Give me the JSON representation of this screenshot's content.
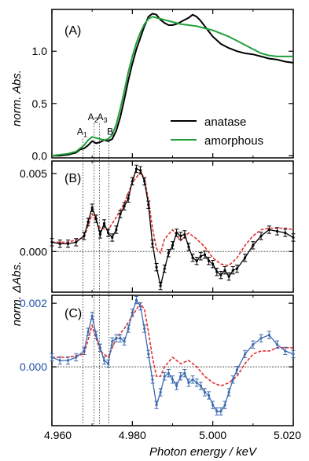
{
  "chart_data": [
    {
      "type": "line",
      "panel_label": "(A)",
      "ylabel": "norm. Abs.",
      "xlim": [
        4.96,
        5.02
      ],
      "ylim": [
        -0.02,
        1.4
      ],
      "yticks": [
        "0.0",
        "0.5",
        "1.0"
      ],
      "legend_position": "bottom-right",
      "annotations": [
        {
          "text": "A",
          "sub": "1",
          "x": 4.9675,
          "y": 0.2
        },
        {
          "text": "A",
          "sub": "2",
          "x": 4.9702,
          "y": 0.34
        },
        {
          "text": "A",
          "sub": "3",
          "x": 4.9725,
          "y": 0.34
        },
        {
          "text": "B",
          "x": 4.9745,
          "y": 0.2
        }
      ],
      "series": [
        {
          "name": "anatase",
          "color": "#000000",
          "x": [
            4.96,
            4.962,
            4.964,
            4.966,
            4.967,
            4.968,
            4.969,
            4.97,
            4.971,
            4.972,
            4.973,
            4.974,
            4.975,
            4.976,
            4.977,
            4.978,
            4.979,
            4.98,
            4.981,
            4.982,
            4.983,
            4.984,
            4.985,
            4.986,
            4.987,
            4.988,
            4.989,
            4.99,
            4.991,
            4.992,
            4.993,
            4.994,
            4.995,
            4.996,
            4.997,
            4.998,
            4.999,
            5.0,
            5.002,
            5.004,
            5.006,
            5.008,
            5.01,
            5.012,
            5.014,
            5.016,
            5.018,
            5.02
          ],
          "y": [
            0.0,
            0.0,
            0.01,
            0.03,
            0.06,
            0.07,
            0.1,
            0.14,
            0.12,
            0.13,
            0.15,
            0.14,
            0.16,
            0.24,
            0.37,
            0.54,
            0.72,
            0.88,
            1.02,
            1.13,
            1.24,
            1.33,
            1.36,
            1.35,
            1.3,
            1.27,
            1.25,
            1.25,
            1.26,
            1.28,
            1.3,
            1.32,
            1.35,
            1.33,
            1.29,
            1.24,
            1.19,
            1.14,
            1.07,
            1.03,
            1.0,
            0.98,
            0.97,
            0.95,
            0.93,
            0.92,
            0.9,
            0.89
          ]
        },
        {
          "name": "amorphous",
          "color": "#21a03a",
          "x": [
            4.96,
            4.962,
            4.964,
            4.966,
            4.967,
            4.968,
            4.969,
            4.97,
            4.971,
            4.972,
            4.973,
            4.974,
            4.975,
            4.976,
            4.977,
            4.978,
            4.979,
            4.98,
            4.981,
            4.982,
            4.983,
            4.984,
            4.985,
            4.986,
            4.987,
            4.988,
            4.99,
            4.992,
            4.994,
            4.996,
            4.998,
            5.0,
            5.002,
            5.004,
            5.006,
            5.008,
            5.01,
            5.012,
            5.014,
            5.016,
            5.018,
            5.02
          ],
          "y": [
            0.0,
            0.01,
            0.02,
            0.04,
            0.07,
            0.1,
            0.15,
            0.18,
            0.17,
            0.16,
            0.15,
            0.16,
            0.2,
            0.3,
            0.45,
            0.62,
            0.8,
            0.95,
            1.08,
            1.18,
            1.26,
            1.31,
            1.33,
            1.32,
            1.31,
            1.3,
            1.28,
            1.26,
            1.25,
            1.24,
            1.22,
            1.2,
            1.17,
            1.14,
            1.1,
            1.06,
            1.02,
            0.98,
            0.96,
            0.95,
            0.95,
            0.95
          ]
        }
      ]
    },
    {
      "type": "line",
      "panel_label": "(B)",
      "ylabel": "norm. ΔAbs.",
      "xlim": [
        4.96,
        5.02
      ],
      "ylim": [
        -0.0026,
        0.0058
      ],
      "yticks": [
        "0.000",
        "0.005"
      ],
      "series": [
        {
          "color": "#000000",
          "style": "markers-with-error-bars",
          "x": [
            4.96,
            4.962,
            4.964,
            4.966,
            4.968,
            4.969,
            4.97,
            4.971,
            4.972,
            4.973,
            4.974,
            4.975,
            4.976,
            4.977,
            4.978,
            4.979,
            4.98,
            4.981,
            4.982,
            4.983,
            4.984,
            4.985,
            4.986,
            4.987,
            4.988,
            4.989,
            4.99,
            4.991,
            4.992,
            4.993,
            4.994,
            4.995,
            4.996,
            4.997,
            4.998,
            4.999,
            5.0,
            5.001,
            5.002,
            5.003,
            5.004,
            5.005,
            5.006,
            5.008,
            5.01,
            5.012,
            5.014,
            5.016,
            5.018,
            5.02
          ],
          "y": [
            0.0006,
            0.0005,
            0.0005,
            0.0006,
            0.001,
            0.0019,
            0.0028,
            0.0021,
            0.0011,
            0.0018,
            0.0012,
            0.0009,
            0.0014,
            0.0024,
            0.0029,
            0.0034,
            0.0045,
            0.0053,
            0.0052,
            0.0045,
            0.003,
            0.0005,
            -0.001,
            -0.0022,
            -0.0011,
            -0.0001,
            0.0004,
            0.0012,
            0.001,
            0.0011,
            0.0003,
            -0.0004,
            -0.0006,
            -0.0003,
            -0.0002,
            -0.0006,
            -0.0008,
            -0.0013,
            -0.0015,
            -0.0012,
            -0.0016,
            -0.0012,
            -0.0011,
            -0.0004,
            0.0004,
            0.001,
            0.0014,
            0.0013,
            0.0012,
            0.0009
          ]
        },
        {
          "color": "#e03030",
          "style": "dashed",
          "x": [
            4.96,
            4.964,
            4.968,
            4.97,
            4.972,
            4.974,
            4.976,
            4.978,
            4.98,
            4.982,
            4.983,
            4.984,
            4.985,
            4.986,
            4.987,
            4.988,
            4.99,
            4.992,
            4.994,
            4.996,
            4.998,
            5.0,
            5.002,
            5.004,
            5.006,
            5.008,
            5.01,
            5.012,
            5.014,
            5.016,
            5.018,
            5.02
          ],
          "y": [
            0.0006,
            0.0006,
            0.0009,
            0.0024,
            0.0015,
            0.0014,
            0.0022,
            0.0031,
            0.0044,
            0.0051,
            0.0047,
            0.0033,
            0.0015,
            0.0002,
            -0.0001,
            0.0008,
            0.0014,
            0.0007,
            0.0012,
            0.0008,
            0.0003,
            -0.0004,
            -0.0008,
            -0.0009,
            -0.0004,
            0.0004,
            0.001,
            0.0014,
            0.0015,
            0.0015,
            0.0015,
            0.0014
          ]
        }
      ]
    },
    {
      "type": "line",
      "panel_label": "(C)",
      "xlabel": "Photon energy / keV",
      "xlim": [
        4.96,
        5.02
      ],
      "xticks": [
        "4.960",
        "4.980",
        "5.000",
        "5.020"
      ],
      "ylim": [
        -0.00185,
        0.00225
      ],
      "yticks": [
        "0.000",
        "0.002"
      ],
      "tick_label_color": "#2050a8",
      "series": [
        {
          "color": "#3c6ab0",
          "style": "markers-with-error-bars",
          "x": [
            4.96,
            4.962,
            4.964,
            4.966,
            4.968,
            4.969,
            4.97,
            4.971,
            4.972,
            4.973,
            4.974,
            4.975,
            4.976,
            4.977,
            4.978,
            4.979,
            4.98,
            4.981,
            4.982,
            4.983,
            4.984,
            4.985,
            4.986,
            4.987,
            4.988,
            4.989,
            4.99,
            4.991,
            4.992,
            4.993,
            4.994,
            4.995,
            4.996,
            4.997,
            4.998,
            4.999,
            5.0,
            5.001,
            5.002,
            5.003,
            5.004,
            5.005,
            5.006,
            5.008,
            5.01,
            5.012,
            5.014,
            5.016,
            5.018,
            5.02
          ],
          "y": [
            0.0003,
            0.0002,
            0.0002,
            0.0003,
            0.0005,
            0.0011,
            0.0016,
            0.001,
            0.0006,
            0.0002,
            0.0001,
            0.0008,
            0.0009,
            0.0009,
            0.0008,
            0.0012,
            0.0017,
            0.0021,
            0.0019,
            0.0012,
            0.0004,
            -0.0004,
            -0.0012,
            -0.0008,
            -0.0003,
            -0.0002,
            -0.0004,
            -0.0006,
            -0.0003,
            -0.0002,
            -0.0005,
            -0.0004,
            -0.0005,
            -0.0006,
            -0.0008,
            -0.0009,
            -0.0012,
            -0.0014,
            -0.0014,
            -0.0012,
            -0.0008,
            -0.0004,
            -0.0001,
            0.0004,
            0.0007,
            0.0009,
            0.001,
            0.0007,
            0.0005,
            0.0004
          ]
        },
        {
          "color": "#e03030",
          "style": "dashed",
          "x": [
            4.96,
            4.964,
            4.968,
            4.97,
            4.972,
            4.974,
            4.976,
            4.978,
            4.98,
            4.982,
            4.983,
            4.984,
            4.985,
            4.986,
            4.987,
            4.988,
            4.99,
            4.992,
            4.994,
            4.996,
            4.998,
            5.0,
            5.002,
            5.004,
            5.006,
            5.008,
            5.01,
            5.012,
            5.014,
            5.016,
            5.018,
            5.02
          ],
          "y": [
            0.0003,
            0.0003,
            0.0004,
            0.0013,
            0.0005,
            0.0003,
            0.0009,
            0.0012,
            0.0016,
            0.002,
            0.0018,
            0.0011,
            0.0003,
            -0.0003,
            -0.0003,
            0.0,
            0.0003,
            0.0001,
            0.0002,
            0.0,
            -0.0003,
            -0.0005,
            -0.0006,
            -0.0005,
            -0.0003,
            0.0001,
            0.0004,
            0.0005,
            0.0005,
            0.0006,
            0.0006,
            0.0006
          ]
        }
      ]
    }
  ]
}
